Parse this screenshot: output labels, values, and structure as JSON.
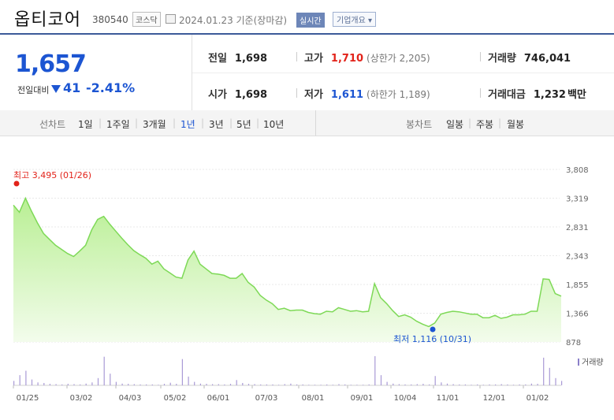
{
  "header": {
    "title": "옵티코어",
    "code": "380540",
    "market_badge": "코스닥",
    "date_text": "2024.01.23 기준(장마감)",
    "realtime_badge": "실시간",
    "company_info_button": "기업개요 ▾"
  },
  "summary": {
    "price": "1,657",
    "change_label": "전일대비",
    "change_value": "41",
    "change_pct": "-2.41%",
    "prev_close_label": "전일",
    "prev_close": "1,698",
    "high_label": "고가",
    "high": "1,710",
    "upper_limit": "(상한가 2,205)",
    "volume_label": "거래량",
    "volume": "746,041",
    "open_label": "시가",
    "open": "1,698",
    "low_label": "저가",
    "low": "1,611",
    "lower_limit": "(하한가 1,189)",
    "trade_value_label": "거래대금",
    "trade_value": "1,232",
    "trade_value_unit": "백만"
  },
  "toolbar": {
    "line_chart_label": "선차트",
    "periods": [
      "1일",
      "1주일",
      "3개월",
      "1년",
      "3년",
      "5년",
      "10년"
    ],
    "active_period": "1년",
    "candle_label": "봉차트",
    "candle_periods": [
      "일봉",
      "주봉",
      "월봉"
    ]
  },
  "colors": {
    "accent": "#1c55d2",
    "up": "#e2231a",
    "line": "#7ed957",
    "fill": "#d9f5c5"
  },
  "chart_data": {
    "type": "area",
    "y_ticks": [
      "3,808",
      "3,319",
      "2,831",
      "2,343",
      "1,855",
      "1,366",
      "878"
    ],
    "ylim": [
      878,
      3808
    ],
    "x_ticks": [
      "01/25",
      "03/02",
      "04/03",
      "05/02",
      "06/01",
      "07/03",
      "08/01",
      "09/01",
      "10/04",
      "11/01",
      "12/01",
      "01/02"
    ],
    "max_annotation": "최고 3,495 (01/26)",
    "min_annotation": "최저 1,116 (10/31)",
    "volume_legend": "거래량",
    "values": [
      3200,
      3080,
      3320,
      3100,
      2900,
      2720,
      2620,
      2520,
      2450,
      2380,
      2330,
      2420,
      2520,
      2780,
      2960,
      3010,
      2880,
      2760,
      2640,
      2530,
      2430,
      2360,
      2300,
      2200,
      2250,
      2120,
      2050,
      1980,
      1960,
      2270,
      2420,
      2200,
      2120,
      2040,
      2030,
      2010,
      1960,
      1960,
      2040,
      1890,
      1810,
      1670,
      1590,
      1530,
      1430,
      1450,
      1410,
      1420,
      1420,
      1380,
      1360,
      1350,
      1400,
      1390,
      1460,
      1430,
      1400,
      1410,
      1390,
      1400,
      1870,
      1630,
      1530,
      1410,
      1310,
      1340,
      1300,
      1230,
      1180,
      1140,
      1200,
      1350,
      1380,
      1400,
      1390,
      1370,
      1350,
      1350,
      1290,
      1290,
      1330,
      1280,
      1300,
      1340,
      1340,
      1350,
      1400,
      1400,
      1950,
      1940,
      1700,
      1657
    ],
    "volume": [
      0.15,
      0.35,
      0.5,
      0.2,
      0.1,
      0.08,
      0.05,
      0.04,
      0.03,
      0.05,
      0.04,
      0.03,
      0.06,
      0.1,
      0.25,
      0.98,
      0.4,
      0.12,
      0.06,
      0.05,
      0.04,
      0.03,
      0.03,
      0.03,
      0.02,
      0.05,
      0.09,
      0.05,
      0.9,
      0.3,
      0.12,
      0.06,
      0.05,
      0.04,
      0.04,
      0.03,
      0.05,
      0.18,
      0.08,
      0.05,
      0.04,
      0.03,
      0.03,
      0.03,
      0.02,
      0.04,
      0.06,
      0.03,
      0.03,
      0.02,
      0.02,
      0.02,
      0.03,
      0.02,
      0.04,
      0.03,
      0.02,
      0.02,
      0.02,
      0.03,
      1.0,
      0.35,
      0.12,
      0.06,
      0.04,
      0.03,
      0.03,
      0.04,
      0.05,
      0.03,
      0.32,
      0.1,
      0.06,
      0.04,
      0.03,
      0.03,
      0.02,
      0.03,
      0.02,
      0.03,
      0.03,
      0.04,
      0.03,
      0.02,
      0.03,
      0.03,
      0.06,
      0.05,
      0.95,
      0.6,
      0.25,
      0.15
    ]
  }
}
